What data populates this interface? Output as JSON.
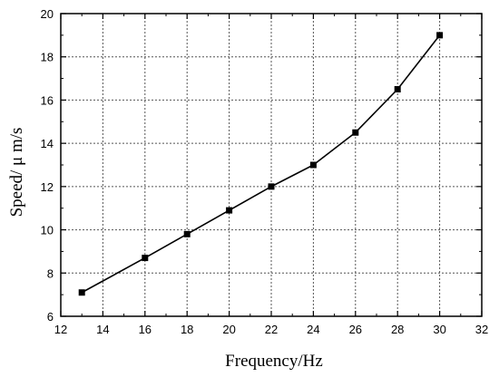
{
  "chart_data": {
    "type": "line",
    "xlabel": "Frequency/Hz",
    "ylabel": "Speed/ μ m/s",
    "xlim": [
      12,
      32
    ],
    "ylim": [
      6,
      20
    ],
    "x_ticks": [
      12,
      14,
      16,
      18,
      20,
      22,
      24,
      26,
      28,
      30,
      32
    ],
    "y_ticks": [
      6,
      8,
      10,
      12,
      14,
      16,
      18,
      20
    ],
    "grid": true,
    "grid_style": "dashed",
    "marker": "square",
    "series": [
      {
        "x": [
          13,
          16,
          18,
          20,
          22,
          24,
          26,
          28,
          30
        ],
        "y": [
          7.1,
          8.7,
          9.8,
          10.9,
          12.0,
          13.0,
          14.5,
          16.5,
          19.0
        ],
        "color": "#000000"
      }
    ]
  }
}
